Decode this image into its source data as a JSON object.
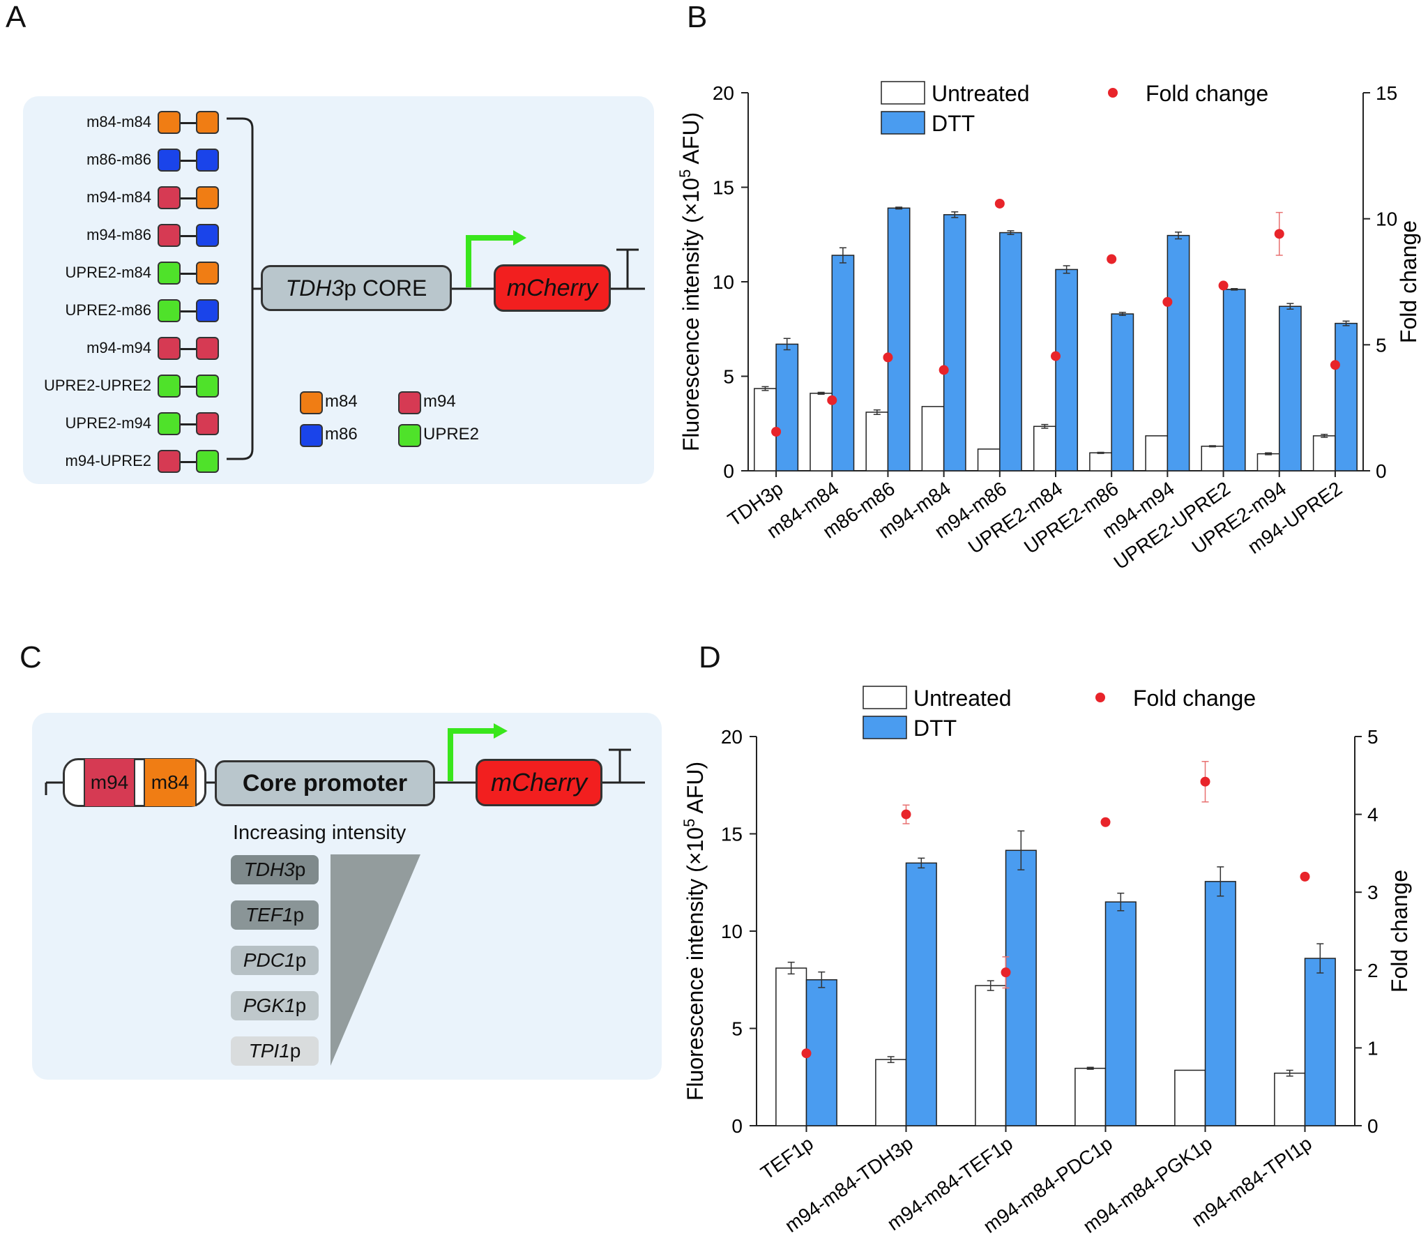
{
  "panels": {
    "a": "A",
    "b": "B",
    "c": "C",
    "d": "D"
  },
  "colors": {
    "m84": "#f07d14",
    "m86": "#1a44ea",
    "m94": "#d63a53",
    "UPRE2": "#4fe22a",
    "dtt": "#4a9cf0",
    "fold": "#e8242a",
    "mcherry": "#f21f1f",
    "arrow": "#39e61c",
    "core": "#b9c6cc"
  },
  "panel_a": {
    "constructs": [
      {
        "label": "m84-m84",
        "left": "m84",
        "right": "m84"
      },
      {
        "label": "m86-m86",
        "left": "m86",
        "right": "m86"
      },
      {
        "label": "m94-m84",
        "left": "m94",
        "right": "m84"
      },
      {
        "label": "m94-m86",
        "left": "m94",
        "right": "m86"
      },
      {
        "label": "UPRE2-m84",
        "left": "UPRE2",
        "right": "m84"
      },
      {
        "label": "UPRE2-m86",
        "left": "UPRE2",
        "right": "m86"
      },
      {
        "label": "m94-m94",
        "left": "m94",
        "right": "m94"
      },
      {
        "label": "UPRE2-UPRE2",
        "left": "UPRE2",
        "right": "UPRE2"
      },
      {
        "label": "UPRE2-m94",
        "left": "UPRE2",
        "right": "m94"
      },
      {
        "label": "m94-UPRE2",
        "left": "m94",
        "right": "UPRE2"
      }
    ],
    "core_italic": "TDH3",
    "core_rest": "p CORE",
    "reporter": "mCherry",
    "legend": {
      "m84": "m84",
      "m86": "m86",
      "m94": "m94",
      "upre2": "UPRE2"
    }
  },
  "panel_c": {
    "m94": "m94",
    "m84": "m84",
    "core": "Core promoter",
    "reporter": "mCherry",
    "gradient_label": "Increasing intensity",
    "promoters": [
      {
        "italic": "TDH3",
        "suffix": "p",
        "shade": "#7f8a8c"
      },
      {
        "italic": "TEF1",
        "suffix": "p",
        "shade": "#8a9597"
      },
      {
        "italic": "PDC1",
        "suffix": "p",
        "shade": "#b6c0c4"
      },
      {
        "italic": "PGK1",
        "suffix": "p",
        "shade": "#bfc8cb"
      },
      {
        "italic": "TPI1",
        "suffix": "p",
        "shade": "#d9dcdd"
      }
    ]
  },
  "chart_data": [
    {
      "panel": "B",
      "type": "bar",
      "categories": [
        "TDH3p",
        "m84-m84",
        "m86-m86",
        "m94-m84",
        "m94-m86",
        "UPRE2-m84",
        "UPRE2-m86",
        "m94-m94",
        "UPRE2-UPRE2",
        "UPRE2-m94",
        "m94-UPRE2"
      ],
      "series": [
        {
          "name": "Untreated",
          "values": [
            4.35,
            4.1,
            3.1,
            3.4,
            1.15,
            2.35,
            0.95,
            1.85,
            1.3,
            0.9,
            1.85
          ],
          "errors": [
            0.1,
            0.05,
            0.12,
            0,
            0,
            0.1,
            0.03,
            0,
            0.03,
            0.05,
            0.08
          ]
        },
        {
          "name": "DTT",
          "values": [
            6.7,
            11.4,
            13.9,
            13.55,
            12.6,
            10.65,
            8.3,
            12.45,
            9.6,
            8.7,
            7.8
          ],
          "errors": [
            0.3,
            0.4,
            0.05,
            0.15,
            0.1,
            0.2,
            0.08,
            0.18,
            0.04,
            0.15,
            0.12
          ]
        },
        {
          "name": "Fold change",
          "axis": "right",
          "values": [
            1.55,
            2.8,
            4.5,
            4.0,
            10.6,
            4.55,
            8.4,
            6.7,
            7.35,
            9.4,
            4.2
          ],
          "errors": [
            0,
            0,
            0,
            0,
            0,
            0,
            0,
            0,
            0,
            0.85,
            0
          ]
        }
      ],
      "ylabel": "Fluorescence intensity (×10⁵ AFU)",
      "ylabel_right": "Fold change",
      "ylim": [
        0,
        20
      ],
      "ylim_right": [
        0,
        15
      ],
      "yticks": [
        0,
        5,
        10,
        15,
        20
      ],
      "yticks_right": [
        0,
        5,
        10,
        15
      ],
      "legend": [
        "Untreated",
        "DTT",
        "Fold change"
      ]
    },
    {
      "panel": "D",
      "type": "bar",
      "categories": [
        "TEF1p",
        "m94-m84-TDH3p",
        "m94-m84-TEF1p",
        "m94-m84-PDC1p",
        "m94-m84-PGK1p",
        "m94-m84-TPI1p"
      ],
      "series": [
        {
          "name": "Untreated",
          "values": [
            8.1,
            3.4,
            7.2,
            2.95,
            2.85,
            2.7
          ],
          "errors": [
            0.3,
            0.15,
            0.25,
            0.05,
            0,
            0.15
          ]
        },
        {
          "name": "DTT",
          "values": [
            7.5,
            13.5,
            14.15,
            11.5,
            12.55,
            8.6
          ],
          "errors": [
            0.4,
            0.25,
            1.0,
            0.45,
            0.75,
            0.75
          ]
        },
        {
          "name": "Fold change",
          "axis": "right",
          "values": [
            0.93,
            4.0,
            1.97,
            3.9,
            4.42,
            3.2
          ],
          "errors": [
            0,
            0.12,
            0.2,
            0,
            0.26,
            0.04
          ]
        }
      ],
      "ylabel": "Fluorescence intensity (×10⁵ AFU)",
      "ylabel_right": "Fold change",
      "ylim": [
        0,
        20
      ],
      "ylim_right": [
        0,
        5
      ],
      "yticks": [
        0,
        5,
        10,
        15,
        20
      ],
      "yticks_right": [
        0,
        1,
        2,
        3,
        4,
        5
      ],
      "legend": [
        "Untreated",
        "DTT",
        "Fold change"
      ]
    }
  ]
}
